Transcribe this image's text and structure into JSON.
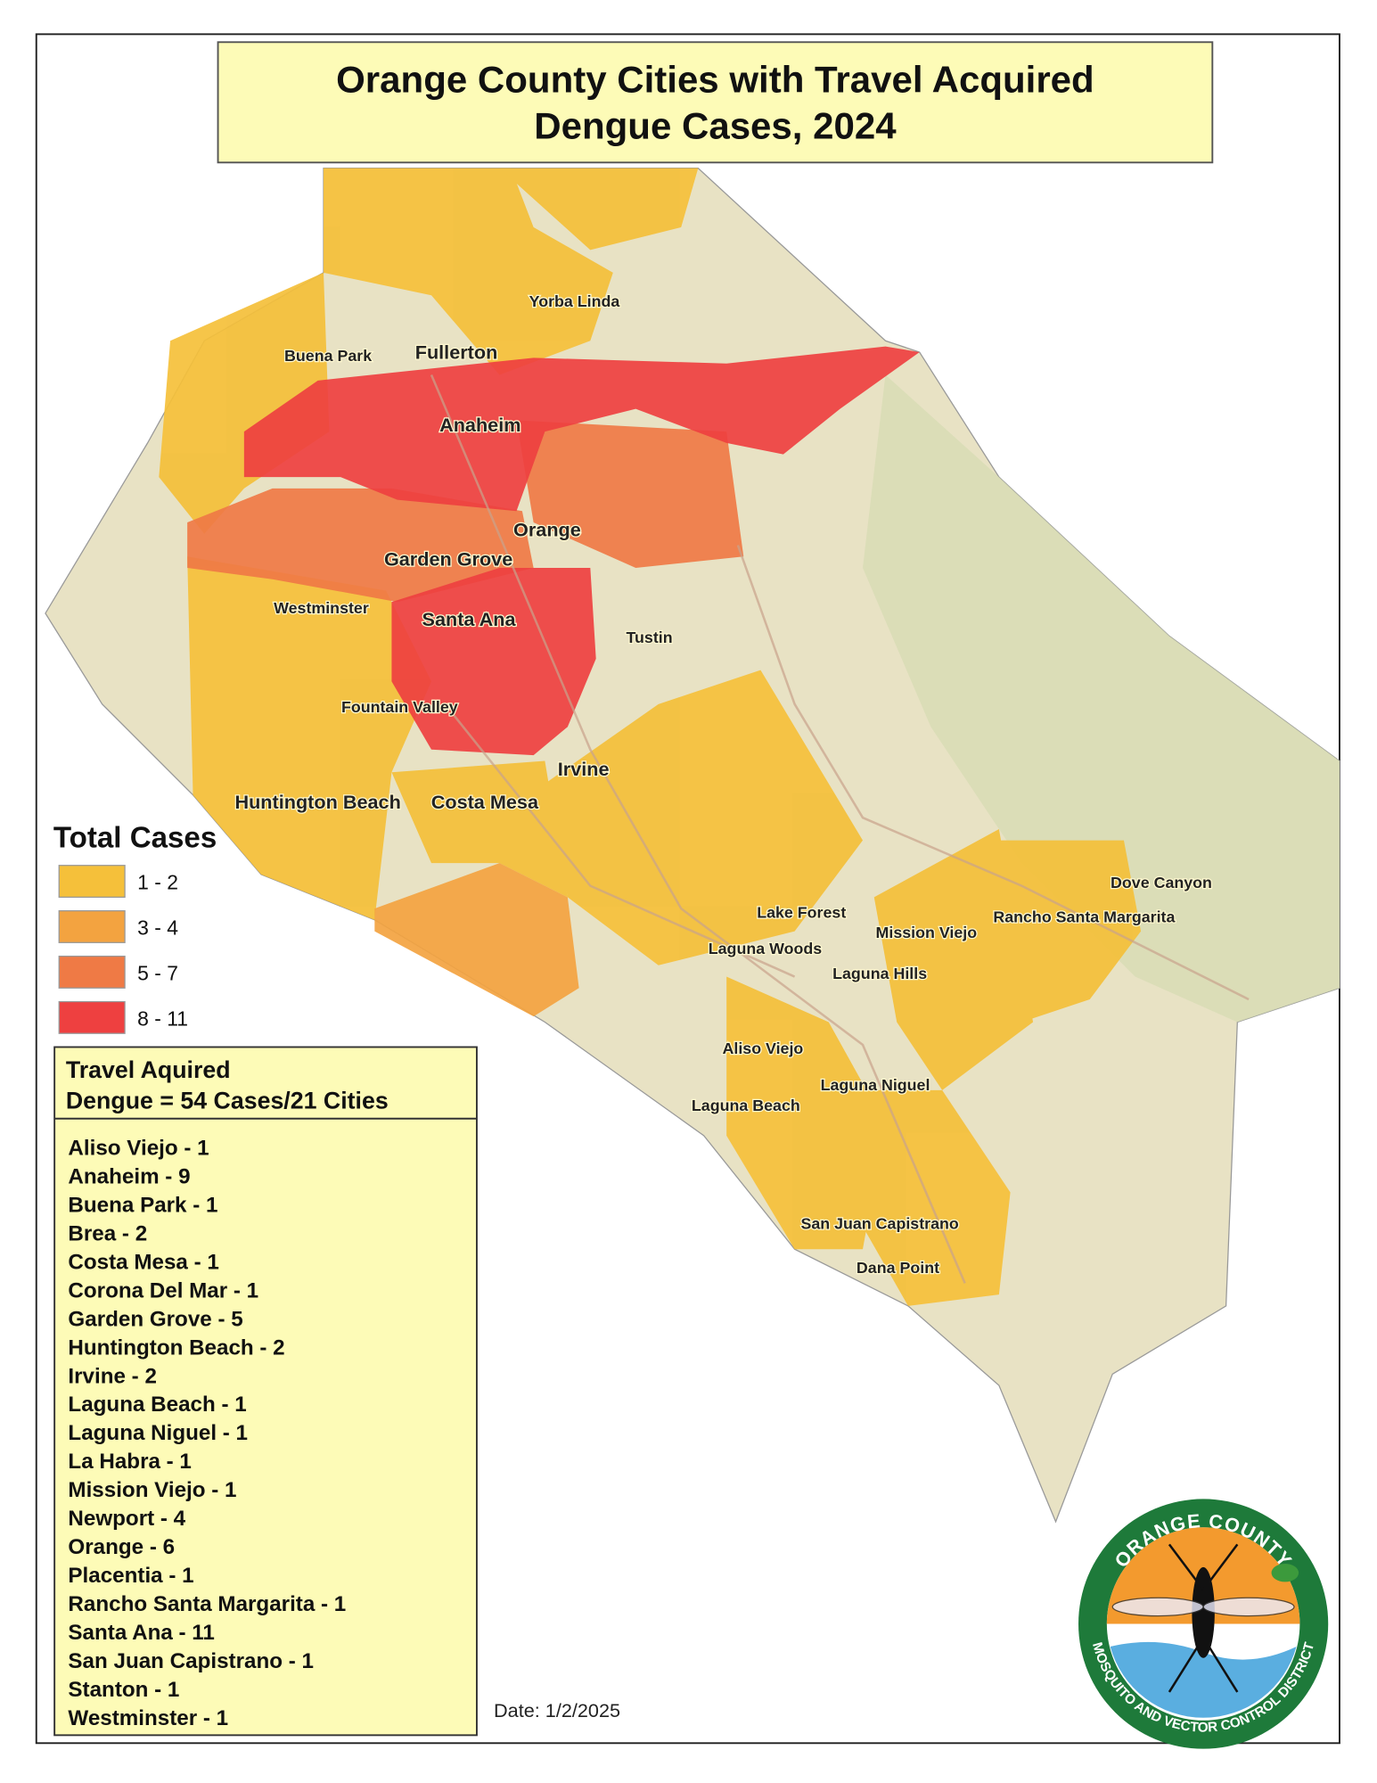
{
  "title_lines": [
    "Orange County Cities with Travel Acquired",
    "Dengue Cases, 2024"
  ],
  "legend": {
    "title": "Total Cases",
    "classes": [
      {
        "label": "1 - 2",
        "color": "#f5c03a"
      },
      {
        "label": "3 - 4",
        "color": "#f3a340"
      },
      {
        "label": "5 - 7",
        "color": "#ef7a45"
      },
      {
        "label": "8 - 11",
        "color": "#ee4040"
      }
    ]
  },
  "summary_lines": [
    "Travel Aquired",
    "Dengue = 54 Cases/21 Cities"
  ],
  "cities": [
    "Aliso Viejo - 1",
    "Anaheim - 9",
    "Buena Park - 1",
    "Brea - 2",
    "Costa Mesa - 1",
    "Corona Del Mar - 1",
    "Garden Grove - 5",
    "Huntington Beach - 2",
    "Irvine - 2",
    "Laguna Beach - 1",
    "Laguna Niguel - 1",
    "La Habra - 1",
    "Mission Viejo - 1",
    "Newport - 4",
    "Orange - 6",
    "Placentia - 1",
    "Rancho Santa Margarita - 1",
    "Santa Ana - 11",
    "San Juan Capistrano - 1",
    "Stanton - 1",
    "Westminster - 1"
  ],
  "date": "Date: 1/2/2025",
  "map_labels": [
    "Fullerton",
    "Anaheim",
    "Orange",
    "Garden Grove",
    "Santa Ana",
    "Tustin",
    "Irvine",
    "Huntington Beach",
    "Costa Mesa",
    "Westminster",
    "Fountain Valley",
    "Buena Park",
    "Yorba Linda",
    "Lake Forest",
    "Laguna Woods",
    "Mission Viejo",
    "Laguna Hills",
    "Rancho Santa Margarita",
    "Dove Canyon",
    "Aliso Viejo",
    "Laguna Niguel",
    "Laguna Beach",
    "San Juan Capistrano",
    "Dana Point"
  ],
  "logo": {
    "top": "ORANGE COUNTY",
    "bottom": "MOSQUITO AND VECTOR CONTROL DISTRICT"
  }
}
